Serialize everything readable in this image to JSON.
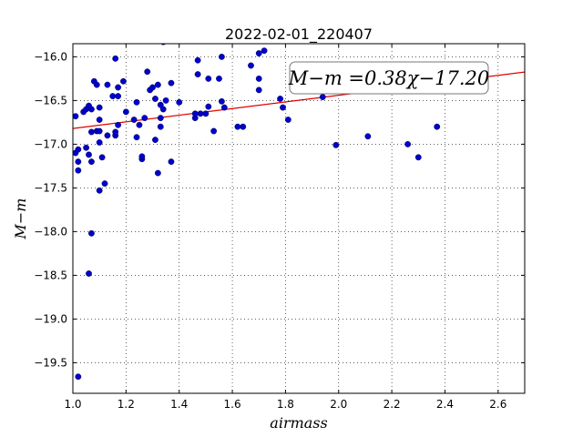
{
  "chart_data": {
    "type": "scatter",
    "title": "2022-02-01_220407",
    "xlabel": "airmass",
    "ylabel": "M−m",
    "xlim": [
      1.0,
      2.7
    ],
    "ylim": [
      -19.85,
      -15.85
    ],
    "x_ticks": [
      1.0,
      1.2,
      1.4,
      1.6,
      1.8,
      2.0,
      2.2,
      2.4,
      2.6
    ],
    "x_tick_labels": [
      "1.0",
      "1.2",
      "1.4",
      "1.6",
      "1.8",
      "2.0",
      "2.2",
      "2.4",
      "2.6"
    ],
    "y_ticks": [
      -16.0,
      -16.5,
      -17.0,
      -17.5,
      -18.0,
      -18.5,
      -19.0,
      -19.5
    ],
    "y_tick_labels": [
      "−16.0",
      "−16.5",
      "−17.0",
      "−17.5",
      "−18.0",
      "−18.5",
      "−19.0",
      "−19.5"
    ],
    "grid": true,
    "point_color": "#0000cc",
    "fit_color": "#dd0000",
    "fit_line": {
      "slope": 0.38,
      "intercept": -17.2
    },
    "annotation": "M−m =0.38χ−17.20",
    "points": [
      [
        1.01,
        -16.68
      ],
      [
        1.01,
        -17.1
      ],
      [
        1.02,
        -17.06
      ],
      [
        1.02,
        -17.2
      ],
      [
        1.02,
        -17.3
      ],
      [
        1.02,
        -19.66
      ],
      [
        1.04,
        -16.63
      ],
      [
        1.05,
        -17.04
      ],
      [
        1.05,
        -16.6
      ],
      [
        1.06,
        -16.56
      ],
      [
        1.06,
        -17.12
      ],
      [
        1.06,
        -18.48
      ],
      [
        1.07,
        -16.6
      ],
      [
        1.07,
        -16.86
      ],
      [
        1.07,
        -17.2
      ],
      [
        1.07,
        -18.02
      ],
      [
        1.08,
        -16.28
      ],
      [
        1.09,
        -16.32
      ],
      [
        1.09,
        -16.85
      ],
      [
        1.1,
        -16.58
      ],
      [
        1.1,
        -16.72
      ],
      [
        1.1,
        -16.85
      ],
      [
        1.1,
        -17.53
      ],
      [
        1.1,
        -16.98
      ],
      [
        1.11,
        -17.15
      ],
      [
        1.12,
        -17.45
      ],
      [
        1.13,
        -16.32
      ],
      [
        1.13,
        -16.9
      ],
      [
        1.15,
        -16.45
      ],
      [
        1.16,
        -16.02
      ],
      [
        1.16,
        -16.9
      ],
      [
        1.16,
        -16.86
      ],
      [
        1.17,
        -16.35
      ],
      [
        1.17,
        -16.45
      ],
      [
        1.17,
        -16.78
      ],
      [
        1.19,
        -16.28
      ],
      [
        1.2,
        -16.63
      ],
      [
        1.23,
        -16.72
      ],
      [
        1.24,
        -16.52
      ],
      [
        1.24,
        -16.92
      ],
      [
        1.25,
        -16.78
      ],
      [
        1.26,
        -17.17
      ],
      [
        1.26,
        -17.14
      ],
      [
        1.27,
        -16.7
      ],
      [
        1.28,
        -16.17
      ],
      [
        1.29,
        -16.38
      ],
      [
        1.3,
        -16.35
      ],
      [
        1.31,
        -16.48
      ],
      [
        1.31,
        -16.95
      ],
      [
        1.32,
        -16.32
      ],
      [
        1.32,
        -17.33
      ],
      [
        1.33,
        -16.55
      ],
      [
        1.33,
        -16.7
      ],
      [
        1.33,
        -16.8
      ],
      [
        1.34,
        -15.83
      ],
      [
        1.34,
        -16.6
      ],
      [
        1.35,
        -16.5
      ],
      [
        1.37,
        -16.3
      ],
      [
        1.37,
        -17.2
      ],
      [
        1.4,
        -16.52
      ],
      [
        1.46,
        -16.7
      ],
      [
        1.46,
        -16.65
      ],
      [
        1.47,
        -16.04
      ],
      [
        1.47,
        -16.2
      ],
      [
        1.48,
        -16.65
      ],
      [
        1.5,
        -16.65
      ],
      [
        1.51,
        -16.57
      ],
      [
        1.51,
        -16.25
      ],
      [
        1.53,
        -16.85
      ],
      [
        1.55,
        -16.25
      ],
      [
        1.56,
        -16.0
      ],
      [
        1.56,
        -16.51
      ],
      [
        1.57,
        -16.58
      ],
      [
        1.62,
        -16.8
      ],
      [
        1.64,
        -16.8
      ],
      [
        1.67,
        -16.1
      ],
      [
        1.7,
        -15.96
      ],
      [
        1.7,
        -16.25
      ],
      [
        1.7,
        -16.38
      ],
      [
        1.72,
        -15.93
      ],
      [
        1.78,
        -16.48
      ],
      [
        1.79,
        -16.58
      ],
      [
        1.81,
        -16.72
      ],
      [
        1.94,
        -16.46
      ],
      [
        1.99,
        -17.01
      ],
      [
        2.11,
        -16.91
      ],
      [
        2.26,
        -17.0
      ],
      [
        2.3,
        -17.15
      ],
      [
        2.37,
        -16.8
      ]
    ]
  }
}
